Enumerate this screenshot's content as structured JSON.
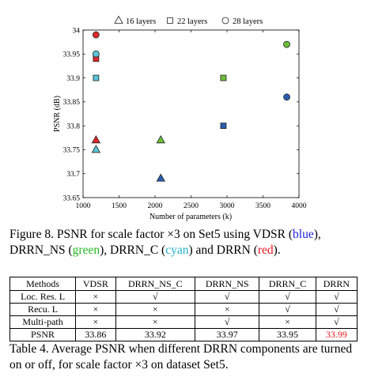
{
  "chart_data": {
    "type": "scatter",
    "xlabel": "Number of parameters (k)",
    "ylabel": "PSNR (dB)",
    "xlim": [
      1000,
      4000
    ],
    "ylim": [
      33.65,
      34
    ],
    "xticks": [
      1000,
      1500,
      2000,
      2500,
      3000,
      3500,
      4000
    ],
    "yticks": [
      33.65,
      33.7,
      33.75,
      33.8,
      33.85,
      33.9,
      33.95,
      34
    ],
    "legend": [
      {
        "marker": "triangle",
        "label": "16 layers"
      },
      {
        "marker": "square",
        "label": "22 layers"
      },
      {
        "marker": "circle",
        "label": "28 layers"
      }
    ],
    "legend_position": "top",
    "grid": false,
    "colors": {
      "VDSR": "#2a5db0",
      "DRRN_NS": "#6dbf3a",
      "DRRN_C": "#5bc4d6",
      "DRRN": "#e0282a"
    },
    "points": [
      {
        "method": "DRRN",
        "layers": 16,
        "x": 1180,
        "y": 33.77
      },
      {
        "method": "DRRN_C",
        "layers": 16,
        "x": 1180,
        "y": 33.75
      },
      {
        "method": "DRRN_NS",
        "layers": 16,
        "x": 2080,
        "y": 33.77
      },
      {
        "method": "VDSR",
        "layers": 16,
        "x": 2080,
        "y": 33.69
      },
      {
        "method": "DRRN",
        "layers": 22,
        "x": 1180,
        "y": 33.94
      },
      {
        "method": "DRRN_C",
        "layers": 22,
        "x": 1180,
        "y": 33.9
      },
      {
        "method": "DRRN_NS",
        "layers": 22,
        "x": 2950,
        "y": 33.9
      },
      {
        "method": "VDSR",
        "layers": 22,
        "x": 2950,
        "y": 33.8
      },
      {
        "method": "DRRN",
        "layers": 28,
        "x": 1180,
        "y": 33.99
      },
      {
        "method": "DRRN_C",
        "layers": 28,
        "x": 1180,
        "y": 33.95
      },
      {
        "method": "DRRN_NS",
        "layers": 28,
        "x": 3830,
        "y": 33.97
      },
      {
        "method": "VDSR",
        "layers": 28,
        "x": 3830,
        "y": 33.86
      }
    ]
  },
  "figure_caption": {
    "p1": "Figure 8. PSNR for scale factor ×3 on Set5 using VDSR (",
    "vdsr": "blue",
    "p2": "), DRRN_NS (",
    "drrn_ns": "green",
    "p3": "), DRRN_C (",
    "drrn_c": "cyan",
    "p4": ") and DRRN (",
    "drrn": "red",
    "p5": ")."
  },
  "table": {
    "headers": [
      "Methods",
      "VDSR",
      "DRRN_NS_C",
      "DRRN_NS",
      "DRRN_C",
      "DRRN"
    ],
    "rows": [
      {
        "label": "Loc. Res. L",
        "cells": [
          "×",
          "√",
          "√",
          "√",
          "√"
        ]
      },
      {
        "label": "Recu. L",
        "cells": [
          "×",
          "×",
          "×",
          "√",
          "√"
        ]
      },
      {
        "label": "Multi-path",
        "cells": [
          "×",
          "×",
          "√",
          "×",
          "√"
        ]
      },
      {
        "label": "PSNR",
        "cells": [
          "33.86",
          "33.92",
          "33.97",
          "33.95",
          "33.99"
        ]
      }
    ]
  },
  "table_caption": "Table 4. Average PSNR when different DRRN components are turned on or off, for scale factor ×3 on dataset Set5."
}
